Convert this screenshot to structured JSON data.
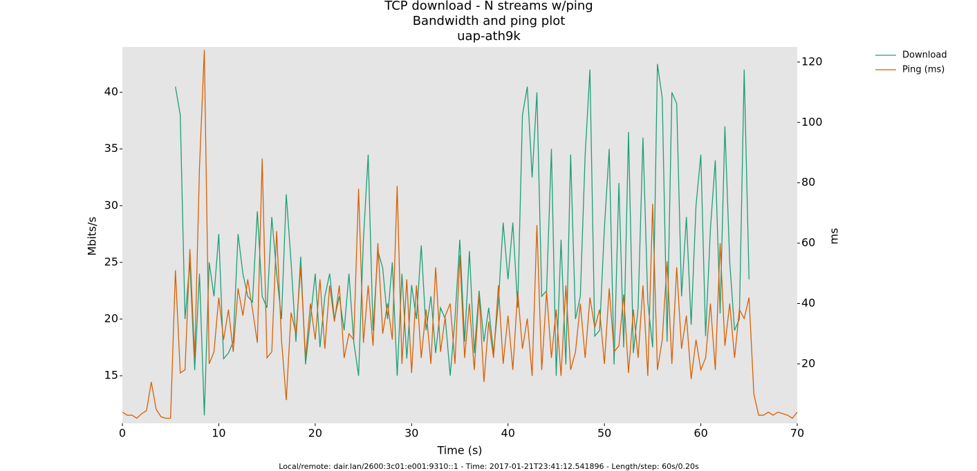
{
  "chart_data": {
    "type": "line",
    "title": [
      "TCP download - N streams w/ping",
      "Bandwidth and ping plot",
      "uap-ath9k"
    ],
    "xlabel": "Time (s)",
    "ylabel": "Mbits/s",
    "y2label": "ms",
    "footer": "Local/remote: dair.lan/2600:3c01:e001:9310::1 - Time: 2017-01-21T23:41:12.541896 - Length/step: 60s/0.20s",
    "legend": "outside upper right",
    "background": "#e5e5e5",
    "xlim": [
      0,
      70
    ],
    "xticks": [
      0,
      10,
      20,
      30,
      40,
      50,
      60,
      70
    ],
    "ylim": [
      10.8,
      44.0
    ],
    "yticks": [
      15,
      20,
      25,
      30,
      35,
      40
    ],
    "y2lim": [
      0.3,
      125
    ],
    "y2ticks": [
      20,
      40,
      60,
      80,
      100,
      120
    ],
    "x": [
      0,
      0.5,
      1,
      1.5,
      2,
      2.5,
      3,
      3.5,
      4,
      4.5,
      5,
      5.5,
      6,
      6.5,
      7,
      7.5,
      8,
      8.5,
      9,
      9.5,
      10,
      10.5,
      11,
      11.5,
      12,
      12.5,
      13,
      13.5,
      14,
      14.5,
      15,
      15.5,
      16,
      16.5,
      17,
      17.5,
      18,
      18.5,
      19,
      19.5,
      20,
      20.5,
      21,
      21.5,
      22,
      22.5,
      23,
      23.5,
      24,
      24.5,
      25,
      25.5,
      26,
      26.5,
      27,
      27.5,
      28,
      28.5,
      29,
      29.5,
      30,
      30.5,
      31,
      31.5,
      32,
      32.5,
      33,
      33.5,
      34,
      34.5,
      35,
      35.5,
      36,
      36.5,
      37,
      37.5,
      38,
      38.5,
      39,
      39.5,
      40,
      40.5,
      41,
      41.5,
      42,
      42.5,
      43,
      43.5,
      44,
      44.5,
      45,
      45.5,
      46,
      46.5,
      47,
      47.5,
      48,
      48.5,
      49,
      49.5,
      50,
      50.5,
      51,
      51.5,
      52,
      52.5,
      53,
      53.5,
      54,
      54.5,
      55,
      55.5,
      56,
      56.5,
      57,
      57.5,
      58,
      58.5,
      59,
      59.5,
      60,
      60.5,
      61,
      61.5,
      62,
      62.5,
      63,
      63.5,
      64,
      64.5,
      65,
      65.5,
      66,
      66.5,
      67,
      67.5,
      68,
      68.5,
      69,
      69.5,
      70
    ],
    "series": [
      {
        "name": "Download",
        "color": "#1b9e77",
        "values": [
          null,
          null,
          null,
          null,
          null,
          null,
          null,
          null,
          null,
          null,
          null,
          40.5,
          38,
          20,
          25,
          15.5,
          24,
          11.5,
          25,
          22,
          27.5,
          16.5,
          17,
          18,
          27.5,
          24,
          22,
          21.5,
          29.5,
          22,
          21,
          29,
          24,
          20,
          31,
          25,
          18,
          25.5,
          16,
          20,
          24,
          17.5,
          22,
          24,
          20,
          22,
          19,
          24,
          18,
          15,
          27,
          34.5,
          19,
          26,
          24.5,
          20,
          25,
          15,
          24,
          16.5,
          23,
          20,
          26.5,
          19,
          22,
          17,
          21,
          20,
          15,
          20,
          27,
          18,
          26,
          17,
          22.5,
          18,
          21,
          17,
          21.5,
          28.5,
          23.5,
          28.5,
          21,
          38,
          40.5,
          32.5,
          40,
          22,
          22.5,
          35,
          15,
          27,
          16,
          34.5,
          20,
          22,
          34.5,
          42,
          18.5,
          19,
          28,
          35,
          16,
          32,
          17.5,
          36.5,
          17,
          21,
          36,
          21.5,
          17.5,
          42.5,
          39.5,
          18,
          40,
          39,
          22,
          29,
          19.5,
          30,
          34.5,
          18.5,
          28,
          34,
          20.5,
          37,
          25,
          19,
          20,
          42,
          23.5,
          null,
          null,
          null,
          null,
          null,
          null,
          null,
          null,
          null,
          null
        ]
      },
      {
        "name": "Ping (ms)",
        "color": "#d95f02",
        "axis": "y2",
        "values": [
          4,
          3,
          3,
          2,
          3.5,
          4.5,
          14,
          5,
          2.5,
          2,
          2,
          51,
          17,
          18,
          58,
          22,
          85,
          124,
          20,
          24,
          42,
          28,
          38,
          24,
          45,
          36,
          48,
          38,
          27,
          88,
          22,
          24,
          64,
          28,
          8,
          37,
          30,
          52,
          22,
          40,
          28,
          48,
          25,
          46,
          34,
          46,
          22,
          30,
          28,
          78,
          27,
          46,
          26,
          60,
          30,
          40,
          28,
          79,
          20,
          48,
          17,
          46,
          22,
          38,
          20,
          52,
          24,
          36,
          40,
          20,
          56,
          22,
          40,
          18,
          43,
          14,
          34,
          22,
          46,
          20,
          36,
          18,
          44,
          25,
          35,
          16,
          66,
          18,
          44,
          22,
          38,
          16,
          46,
          18,
          24,
          40,
          22,
          42,
          32,
          38,
          20,
          45,
          24,
          26,
          43,
          17,
          38,
          22,
          46,
          16,
          73,
          18,
          28,
          54,
          20,
          52,
          25,
          36,
          15,
          28,
          18,
          22,
          40,
          18,
          60,
          26,
          40,
          22,
          38,
          35,
          42,
          10,
          3,
          3,
          4,
          3,
          4,
          3.5,
          3,
          2,
          4
        ]
      }
    ]
  }
}
